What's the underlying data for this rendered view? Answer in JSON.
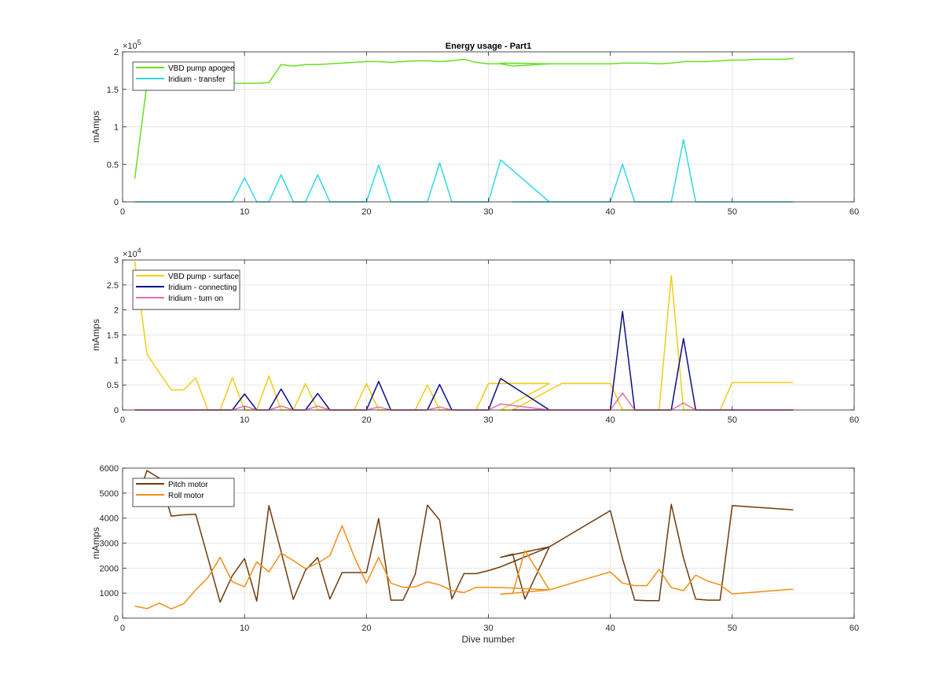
{
  "figure": {
    "title": "Energy usage - Part1"
  },
  "colors": {
    "axis": "#262626",
    "grid": "#e6e6e6"
  },
  "chart_data": [
    {
      "type": "line",
      "title": "Energy usage - Part1",
      "xlabel": "",
      "ylabel": "mAmps",
      "xlim": [
        0,
        60
      ],
      "ylim": [
        0,
        2
      ],
      "exponent": "5",
      "xticks": [
        0,
        10,
        20,
        30,
        40,
        50,
        60
      ],
      "yticks": [
        0,
        0.5,
        1,
        1.5,
        2
      ],
      "yticklabels": [
        "0",
        "0.5",
        "1",
        "1.5",
        "2"
      ],
      "grid": true,
      "legend_position": "top-left",
      "series": [
        {
          "name": "VBD pump apogee",
          "color": "#66e022",
          "x": [
            1,
            2,
            3,
            4,
            5,
            6,
            7,
            8,
            9,
            10,
            11,
            12,
            13,
            14,
            15,
            16,
            17,
            18,
            19,
            20,
            21,
            22,
            23,
            24,
            25,
            26,
            27,
            28,
            29,
            30,
            31,
            32,
            33,
            34,
            35,
            31,
            32,
            35,
            40,
            41,
            42,
            43,
            44,
            45,
            46,
            47,
            48,
            49,
            50,
            51,
            52,
            53,
            54,
            55
          ],
          "y": [
            0.31,
            1.58,
            1.58,
            1.58,
            1.58,
            1.58,
            1.58,
            1.58,
            1.58,
            1.58,
            1.58,
            1.59,
            1.83,
            1.81,
            1.83,
            1.83,
            1.84,
            1.85,
            1.86,
            1.87,
            1.87,
            1.86,
            1.87,
            1.88,
            1.88,
            1.87,
            1.88,
            1.9,
            1.86,
            1.84,
            1.84,
            1.81,
            1.82,
            1.83,
            1.84,
            1.85,
            1.85,
            1.84,
            1.84,
            1.85,
            1.85,
            1.85,
            1.84,
            1.85,
            1.87,
            1.87,
            1.87,
            1.88,
            1.89,
            1.89,
            1.9,
            1.9,
            1.9,
            1.91
          ]
        },
        {
          "name": "Iridium - transfer",
          "color": "#2fd8e6",
          "x": [
            1,
            9,
            10,
            11,
            12,
            13,
            14,
            15,
            16,
            17,
            20,
            21,
            22,
            25,
            26,
            27,
            30,
            31,
            35,
            32,
            40,
            41,
            42,
            45,
            46,
            47,
            55
          ],
          "y": [
            0,
            0,
            0.32,
            0,
            0,
            0.36,
            0,
            0,
            0.36,
            0,
            0,
            0.49,
            0,
            0,
            0.52,
            0,
            0,
            0.56,
            0,
            0,
            0,
            0.5,
            0,
            0,
            0.83,
            0,
            0
          ]
        }
      ]
    },
    {
      "type": "line",
      "title": "",
      "xlabel": "",
      "ylabel": "mAmps",
      "xlim": [
        0,
        60
      ],
      "ylim": [
        0,
        3
      ],
      "exponent": "4",
      "xticks": [
        0,
        10,
        20,
        30,
        40,
        50,
        60
      ],
      "yticks": [
        0,
        0.5,
        1,
        1.5,
        2,
        2.5,
        3
      ],
      "yticklabels": [
        "0",
        "0.5",
        "1",
        "1.5",
        "2",
        "2.5",
        "3"
      ],
      "grid": true,
      "legend_position": "top-left",
      "series": [
        {
          "name": "VBD pump - surface",
          "color": "#f2cd13",
          "x": [
            1,
            2,
            3,
            4,
            5,
            6,
            7,
            8,
            9,
            10,
            11,
            12,
            13,
            14,
            15,
            16,
            17,
            18,
            19,
            20,
            21,
            22,
            23,
            24,
            25,
            26,
            27,
            28,
            29,
            30,
            31,
            32,
            33,
            34,
            35,
            31,
            32,
            36,
            40,
            41,
            42,
            43,
            44,
            45,
            46,
            47,
            48,
            49,
            50,
            55
          ],
          "y": [
            2.97,
            1.12,
            0.75,
            0.4,
            0.4,
            0.64,
            0,
            0,
            0.65,
            0,
            0,
            0.68,
            0,
            0,
            0.53,
            0,
            0,
            0,
            0,
            0.53,
            0,
            0,
            0,
            0,
            0.5,
            0,
            0,
            0,
            0,
            0.53,
            0.53,
            0.53,
            0.53,
            0.53,
            0.53,
            0,
            0,
            0.53,
            0.53,
            0,
            0,
            0,
            0,
            2.69,
            0,
            0,
            0,
            0,
            0.55,
            0.55
          ]
        },
        {
          "name": "Iridium - connecting",
          "color": "#0b0c86",
          "x": [
            1,
            9,
            10,
            11,
            12,
            13,
            14,
            15,
            16,
            17,
            20,
            21,
            22,
            25,
            26,
            27,
            30,
            31,
            35,
            32,
            40,
            41,
            42,
            45,
            46,
            47,
            55
          ],
          "y": [
            0,
            0,
            0.32,
            0,
            0,
            0.42,
            0,
            0,
            0.33,
            0,
            0,
            0.57,
            0,
            0,
            0.51,
            0,
            0,
            0.63,
            0,
            0,
            0,
            1.97,
            0,
            0,
            1.43,
            0,
            0
          ]
        },
        {
          "name": "Iridium - turn on",
          "color": "#e36db0",
          "x": [
            1,
            9,
            10,
            11,
            12,
            13,
            14,
            15,
            16,
            17,
            20,
            21,
            22,
            25,
            26,
            27,
            30,
            31,
            35,
            32,
            40,
            41,
            42,
            45,
            46,
            47,
            55
          ],
          "y": [
            0,
            0,
            0.08,
            0,
            0,
            0.08,
            0,
            0,
            0.08,
            0,
            0,
            0.06,
            0,
            0,
            0.06,
            0,
            0,
            0.12,
            0,
            0,
            0,
            0.34,
            0,
            0,
            0.14,
            0,
            0
          ]
        }
      ]
    },
    {
      "type": "line",
      "title": "",
      "xlabel": "Dive number",
      "ylabel": "mAmps",
      "xlim": [
        0,
        60
      ],
      "ylim": [
        0,
        6000
      ],
      "exponent": "",
      "xticks": [
        0,
        10,
        20,
        30,
        40,
        50,
        60
      ],
      "yticks": [
        0,
        1000,
        2000,
        3000,
        4000,
        5000,
        6000
      ],
      "yticklabels": [
        "0",
        "1000",
        "2000",
        "3000",
        "4000",
        "5000",
        "6000"
      ],
      "grid": true,
      "legend_position": "top-left",
      "series": [
        {
          "name": "Pitch motor",
          "color": "#6e3b0e",
          "x": [
            1,
            2,
            3,
            4,
            5,
            6,
            7,
            8,
            9,
            10,
            11,
            12,
            13,
            14,
            15,
            16,
            17,
            18,
            19,
            20,
            21,
            22,
            23,
            24,
            25,
            26,
            27,
            28,
            29,
            30,
            31,
            32,
            33,
            34,
            35,
            31,
            32,
            33,
            35,
            40,
            41,
            42,
            43,
            44,
            45,
            46,
            47,
            48,
            49,
            50,
            55
          ],
          "y": [
            4500,
            5900,
            5600,
            4080,
            4130,
            4150,
            2400,
            640,
            1700,
            2380,
            680,
            4500,
            2660,
            750,
            1920,
            2420,
            760,
            1820,
            1820,
            1820,
            3980,
            720,
            720,
            1750,
            4520,
            3920,
            770,
            1780,
            1780,
            1900,
            2050,
            2250,
            2450,
            2650,
            2850,
            2430,
            2560,
            760,
            2850,
            4300,
            2380,
            720,
            700,
            700,
            4550,
            2400,
            760,
            720,
            720,
            4500,
            4330
          ]
        },
        {
          "name": "Roll motor",
          "color": "#f28e13",
          "x": [
            1,
            2,
            3,
            4,
            5,
            6,
            7,
            8,
            9,
            10,
            11,
            12,
            13,
            14,
            15,
            16,
            17,
            18,
            19,
            20,
            21,
            22,
            23,
            24,
            25,
            26,
            27,
            28,
            29,
            30,
            31,
            32,
            33,
            34,
            35,
            31,
            32,
            33,
            35,
            40,
            41,
            42,
            43,
            44,
            45,
            46,
            47,
            48,
            49,
            50,
            55
          ],
          "y": [
            480,
            380,
            600,
            370,
            570,
            1130,
            1620,
            2430,
            1450,
            1250,
            2250,
            1850,
            2600,
            2300,
            1980,
            2200,
            2500,
            3700,
            2450,
            1400,
            2430,
            1400,
            1230,
            1250,
            1450,
            1330,
            1100,
            1020,
            1230,
            1230,
            1220,
            1200,
            1180,
            1150,
            1130,
            950,
            1000,
            2700,
            1130,
            1850,
            1400,
            1300,
            1300,
            1950,
            1220,
            1100,
            1720,
            1480,
            1330,
            970,
            1160
          ]
        }
      ]
    }
  ]
}
